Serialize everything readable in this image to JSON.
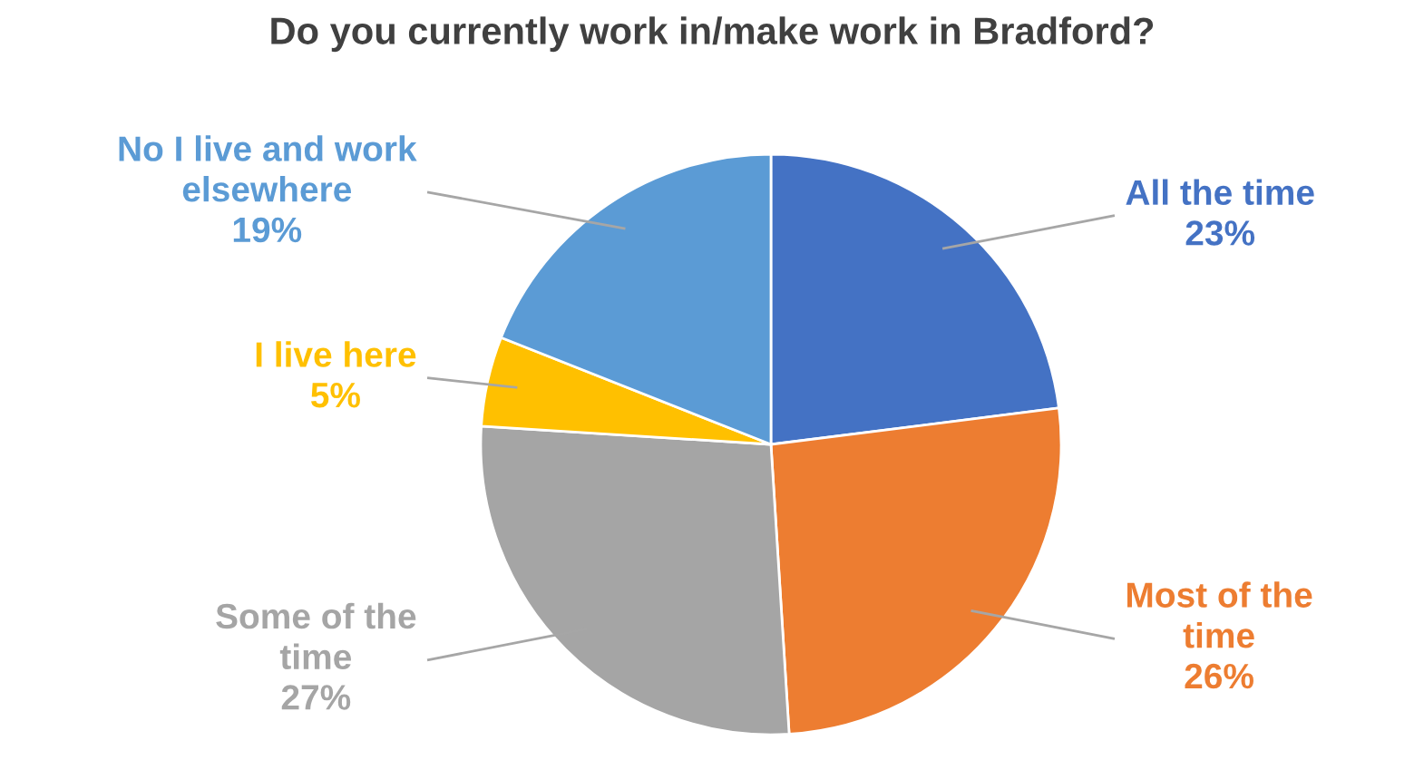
{
  "chart_data": {
    "type": "pie",
    "title": "Do you currently work in/make work in Bradford?",
    "categories": [
      "All the time",
      "Most of the time",
      "Some of the time",
      "I live here",
      "No I live and work elsewhere"
    ],
    "values": [
      23,
      26,
      27,
      5,
      19
    ],
    "colors": [
      "#4472c4",
      "#ed7d31",
      "#a5a5a5",
      "#ffc000",
      "#5b9bd5"
    ],
    "value_labels": [
      "23%",
      "26%",
      "27%",
      "5%",
      "19%"
    ],
    "legend": false
  }
}
